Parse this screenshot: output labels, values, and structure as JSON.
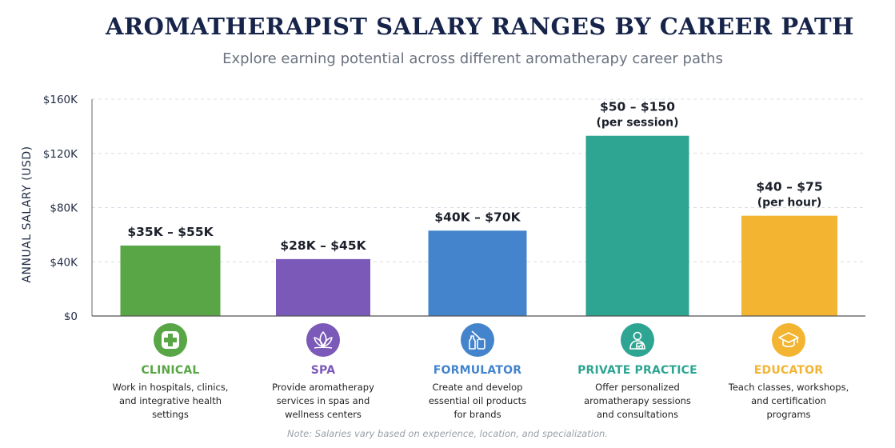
{
  "header": {
    "title": "AROMATHERAPIST SALARY RANGES BY CAREER PATH",
    "subtitle": "Explore earning potential across different aromatherapy career paths"
  },
  "chart_data": {
    "type": "bar",
    "title": "AROMATHERAPIST SALARY RANGES BY CAREER PATH",
    "subtitle": "Explore earning potential across different aromatherapy career paths",
    "ylabel": "ANNUAL SALARY (USD)",
    "xlabel": "",
    "ylim": [
      0,
      160000
    ],
    "yticks": [
      0,
      40000,
      80000,
      120000,
      160000
    ],
    "ytick_labels": [
      "$0",
      "$40K",
      "$80K",
      "$120K",
      "$160K"
    ],
    "grid": true,
    "categories": [
      "CLINICAL",
      "SPA",
      "FORMULATOR",
      "PRIVATE PRACTICE",
      "EDUCATOR"
    ],
    "values": [
      52000,
      42000,
      63000,
      133000,
      74000
    ],
    "bar_labels": [
      [
        "$35K – $55K"
      ],
      [
        "$28K – $45K"
      ],
      [
        "$40K – $70K"
      ],
      [
        "$50 – $150",
        "(per session)"
      ],
      [
        "$40 – $75",
        "(per hour)"
      ]
    ],
    "colors": [
      "#58a645",
      "#7a59b8",
      "#4484cc",
      "#2ea592",
      "#f2b431"
    ]
  },
  "categories": [
    {
      "name": "CLINICAL",
      "icon": "medical-cross-icon",
      "color": "#58a645",
      "desc": "Work in hospitals, clinics,\nand integrative health\nsettings"
    },
    {
      "name": "SPA",
      "icon": "lotus-icon",
      "color": "#7a59b8",
      "desc": "Provide aromatherapy\nservices in spas and\nwellness centers"
    },
    {
      "name": "FORMULATOR",
      "icon": "oil-bottles-icon",
      "color": "#4484cc",
      "desc": "Create and develop\nessential oil products\nfor brands"
    },
    {
      "name": "PRIVATE PRACTICE",
      "icon": "practitioner-clipboard-icon",
      "color": "#2ea592",
      "desc": "Offer personalized\naromatherapy sessions\nand consultations"
    },
    {
      "name": "EDUCATOR",
      "icon": "graduation-cap-icon",
      "color": "#f2b431",
      "desc": "Teach classes, workshops,\nand certification\nprograms"
    }
  ],
  "footer": {
    "note": "Note: Salaries vary based on experience, location, and specialization."
  }
}
